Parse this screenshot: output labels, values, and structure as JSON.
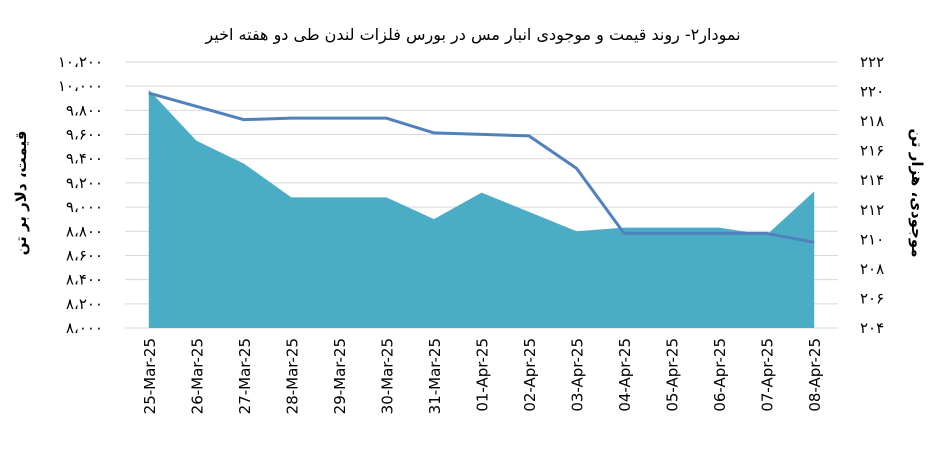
{
  "chart_data": {
    "type": "area",
    "title": "نمودار۲- روند قیمت و موجودی انبار مس در بورس فلزات لندن طی دو هفته اخیر",
    "categories": [
      "25-Mar-25",
      "26-Mar-25",
      "27-Mar-25",
      "28-Mar-25",
      "29-Mar-25",
      "30-Mar-25",
      "31-Mar-25",
      "01-Apr-25",
      "02-Apr-25",
      "03-Apr-25",
      "04-Apr-25",
      "05-Apr-25",
      "06-Apr-25",
      "07-Apr-25",
      "08-Apr-25"
    ],
    "series": [
      {
        "type": "area",
        "axis": "left",
        "color": "#4bacc6",
        "values": [
          9970,
          9550,
          9360,
          9080,
          9080,
          9080,
          8900,
          9120,
          8960,
          8800,
          8830,
          8830,
          8830,
          8770,
          9130
        ]
      },
      {
        "type": "line",
        "axis": "right",
        "color": "#4f81bd",
        "values": [
          219.9,
          219.0,
          218.1,
          218.2,
          218.2,
          218.2,
          217.2,
          217.1,
          217.0,
          214.8,
          210.4,
          210.4,
          210.4,
          210.4,
          209.8
        ]
      }
    ],
    "y_left": {
      "label": "قیمت، دلار بر تن",
      "range": [
        8000,
        10200
      ],
      "ticks": [
        "۸،۰۰۰",
        "۸،۲۰۰",
        "۸،۴۰۰",
        "۸،۶۰۰",
        "۸،۸۰۰",
        "۹،۰۰۰",
        "۹،۲۰۰",
        "۹،۴۰۰",
        "۹،۶۰۰",
        "۹،۸۰۰",
        "۱۰،۰۰۰",
        "۱۰،۲۰۰"
      ]
    },
    "y_right": {
      "label": "موجودی، هزار تن",
      "range": [
        204,
        222
      ],
      "ticks": [
        "۲۰۴",
        "۲۰۶",
        "۲۰۸",
        "۲۱۰",
        "۲۱۲",
        "۲۱۴",
        "۲۱۶",
        "۲۱۸",
        "۲۲۰",
        "۲۲۲"
      ]
    },
    "grid": true,
    "legend": "none"
  }
}
